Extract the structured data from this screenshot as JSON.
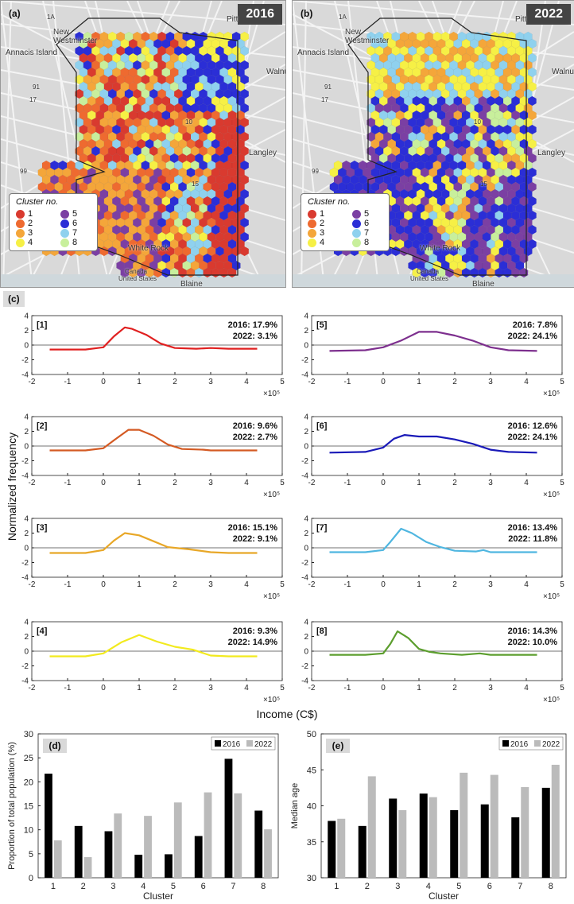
{
  "maps": [
    {
      "tag": "(a)",
      "year": "2016",
      "places": [
        "New Westminster",
        "Annacis Island",
        "Langley",
        "White Rock",
        "Pitt",
        "Walnut",
        "Canada",
        "United States",
        "Blaine"
      ],
      "roads": [
        "1A",
        "91",
        "17",
        "99",
        "15",
        "10"
      ]
    },
    {
      "tag": "(b)",
      "year": "2022",
      "places": [
        "New Westminster",
        "Annacis Island",
        "Langley",
        "White Rock",
        "Pitt",
        "Walnu",
        "Canada",
        "United States",
        "Blaine"
      ],
      "roads": [
        "1A",
        "91",
        "17",
        "99",
        "15",
        "10"
      ]
    }
  ],
  "legend": {
    "title": "Cluster no.",
    "items": [
      {
        "num": "1",
        "color": "#d93a2f"
      },
      {
        "num": "5",
        "color": "#7b3fa3"
      },
      {
        "num": "2",
        "color": "#ee6a30"
      },
      {
        "num": "6",
        "color": "#2b2ed6"
      },
      {
        "num": "3",
        "color": "#f4a63a"
      },
      {
        "num": "7",
        "color": "#8fd1ee"
      },
      {
        "num": "4",
        "color": "#f6f045"
      },
      {
        "num": "8",
        "color": "#c8ef9c"
      }
    ]
  },
  "panel_c": {
    "tag": "(c)",
    "ylabel": "Normalized frequency",
    "xlabel": "Income (C$)",
    "exponent": "×10⁵",
    "chart_data": {
      "type": "line",
      "x_range": [
        -2,
        5
      ],
      "y_range": [
        -4,
        4
      ],
      "x_ticks": [
        "-2",
        "-1",
        "0",
        "1",
        "2",
        "3",
        "4",
        "5"
      ],
      "y_ticks": [
        "4",
        "2",
        "0",
        "-2",
        "-4"
      ],
      "series": [
        {
          "id": "[1]",
          "color": "#e02020",
          "label2016": "2016: 17.9%",
          "label2022": "2022: 3.1%",
          "points": [
            [
              -1.5,
              -0.6
            ],
            [
              -0.5,
              -0.6
            ],
            [
              0,
              -0.3
            ],
            [
              0.3,
              1.2
            ],
            [
              0.6,
              2.4
            ],
            [
              0.8,
              2.2
            ],
            [
              1.2,
              1.4
            ],
            [
              1.6,
              0.2
            ],
            [
              2,
              -0.4
            ],
            [
              2.6,
              -0.5
            ],
            [
              3,
              -0.4
            ],
            [
              3.5,
              -0.5
            ],
            [
              4.3,
              -0.5
            ]
          ]
        },
        {
          "id": "[5]",
          "color": "#7d2f8e",
          "label2016": "2016: 7.8%",
          "label2022": "2022: 24.1%",
          "points": [
            [
              -1.5,
              -0.8
            ],
            [
              -0.5,
              -0.7
            ],
            [
              0,
              -0.3
            ],
            [
              0.5,
              0.6
            ],
            [
              1,
              1.8
            ],
            [
              1.5,
              1.8
            ],
            [
              2,
              1.3
            ],
            [
              2.5,
              0.6
            ],
            [
              3,
              -0.3
            ],
            [
              3.5,
              -0.7
            ],
            [
              4.3,
              -0.8
            ]
          ]
        },
        {
          "id": "[2]",
          "color": "#d45a23",
          "label2016": "2016: 9.6%",
          "label2022": "2022: 2.7%",
          "points": [
            [
              -1.5,
              -0.6
            ],
            [
              -0.5,
              -0.6
            ],
            [
              0,
              -0.3
            ],
            [
              0.3,
              0.8
            ],
            [
              0.7,
              2.2
            ],
            [
              1,
              2.2
            ],
            [
              1.4,
              1.4
            ],
            [
              1.8,
              0.2
            ],
            [
              2.2,
              -0.4
            ],
            [
              2.8,
              -0.5
            ],
            [
              3,
              -0.6
            ],
            [
              4.3,
              -0.6
            ]
          ]
        },
        {
          "id": "[6]",
          "color": "#1a1ab8",
          "label2016": "2016: 12.6%",
          "label2022": "2022: 24.1%",
          "points": [
            [
              -1.5,
              -0.9
            ],
            [
              -0.5,
              -0.8
            ],
            [
              0,
              -0.2
            ],
            [
              0.3,
              1.0
            ],
            [
              0.6,
              1.5
            ],
            [
              1,
              1.3
            ],
            [
              1.5,
              1.3
            ],
            [
              2,
              0.9
            ],
            [
              2.5,
              0.3
            ],
            [
              3,
              -0.5
            ],
            [
              3.5,
              -0.8
            ],
            [
              4.3,
              -0.9
            ]
          ]
        },
        {
          "id": "[3]",
          "color": "#e8a727",
          "label2016": "2016: 15.1%",
          "label2022": "2022: 9.1%",
          "points": [
            [
              -1.5,
              -0.7
            ],
            [
              -0.5,
              -0.7
            ],
            [
              0,
              -0.3
            ],
            [
              0.3,
              1.0
            ],
            [
              0.6,
              2.0
            ],
            [
              1,
              1.7
            ],
            [
              1.4,
              0.9
            ],
            [
              1.8,
              0.1
            ],
            [
              2.4,
              -0.2
            ],
            [
              3,
              -0.6
            ],
            [
              3.5,
              -0.7
            ],
            [
              4.3,
              -0.7
            ]
          ]
        },
        {
          "id": "[7]",
          "color": "#4fb6e0",
          "label2016": "2016: 13.4%",
          "label2022": "2022: 11.8%",
          "points": [
            [
              -1.5,
              -0.6
            ],
            [
              -0.5,
              -0.6
            ],
            [
              0,
              -0.3
            ],
            [
              0.2,
              0.8
            ],
            [
              0.5,
              2.6
            ],
            [
              0.8,
              2.0
            ],
            [
              1.2,
              0.8
            ],
            [
              1.6,
              0.1
            ],
            [
              2,
              -0.4
            ],
            [
              2.6,
              -0.5
            ],
            [
              2.8,
              -0.3
            ],
            [
              3,
              -0.6
            ],
            [
              4.3,
              -0.6
            ]
          ]
        },
        {
          "id": "[4]",
          "color": "#f2ea1e",
          "label2016": "2016: 9.3%",
          "label2022": "2022: 14.9%",
          "points": [
            [
              -1.5,
              -0.7
            ],
            [
              -0.5,
              -0.7
            ],
            [
              0,
              -0.3
            ],
            [
              0.5,
              1.2
            ],
            [
              1,
              2.2
            ],
            [
              1.5,
              1.3
            ],
            [
              2,
              0.6
            ],
            [
              2.5,
              0.2
            ],
            [
              3,
              -0.6
            ],
            [
              3.5,
              -0.7
            ],
            [
              4.3,
              -0.7
            ]
          ]
        },
        {
          "id": "[8]",
          "color": "#5c9e2e",
          "label2016": "2016: 14.3%",
          "label2022": "2022: 10.0%",
          "points": [
            [
              -1.5,
              -0.5
            ],
            [
              -0.5,
              -0.5
            ],
            [
              0,
              -0.3
            ],
            [
              0.2,
              1.0
            ],
            [
              0.4,
              2.7
            ],
            [
              0.7,
              1.8
            ],
            [
              1,
              0.3
            ],
            [
              1.3,
              -0.1
            ],
            [
              1.6,
              -0.3
            ],
            [
              2.2,
              -0.5
            ],
            [
              2.7,
              -0.3
            ],
            [
              3,
              -0.5
            ],
            [
              4.3,
              -0.5
            ]
          ]
        }
      ]
    }
  },
  "panel_d": {
    "tag": "(d)",
    "chart_data": {
      "type": "bar",
      "categories": [
        "1",
        "2",
        "3",
        "4",
        "5",
        "6",
        "7",
        "8"
      ],
      "series": [
        {
          "name": "2016",
          "color": "#000000",
          "values": [
            21.7,
            10.8,
            9.7,
            4.8,
            4.9,
            8.7,
            24.8,
            14.0
          ]
        },
        {
          "name": "2022",
          "color": "#bbbbbb",
          "values": [
            7.8,
            4.3,
            13.4,
            12.9,
            15.7,
            17.8,
            17.6,
            10.1
          ]
        }
      ],
      "ylim": [
        0,
        30
      ],
      "yticks": [
        "0",
        "5",
        "10",
        "15",
        "20",
        "25",
        "30"
      ],
      "xlabel": "Cluster",
      "ylabel": "Proportion of total population (%)"
    }
  },
  "panel_e": {
    "tag": "(e)",
    "chart_data": {
      "type": "bar",
      "categories": [
        "1",
        "2",
        "3",
        "4",
        "5",
        "6",
        "7",
        "8"
      ],
      "series": [
        {
          "name": "2016",
          "color": "#000000",
          "values": [
            37.9,
            37.2,
            41.0,
            41.7,
            39.4,
            40.2,
            38.4,
            42.5
          ]
        },
        {
          "name": "2022",
          "color": "#bbbbbb",
          "values": [
            38.2,
            44.1,
            39.4,
            41.2,
            44.6,
            44.3,
            42.6,
            45.7
          ]
        }
      ],
      "ylim": [
        30,
        50
      ],
      "yticks": [
        "30",
        "35",
        "40",
        "45",
        "50"
      ],
      "xlabel": "Cluster",
      "ylabel": "Median age"
    }
  }
}
